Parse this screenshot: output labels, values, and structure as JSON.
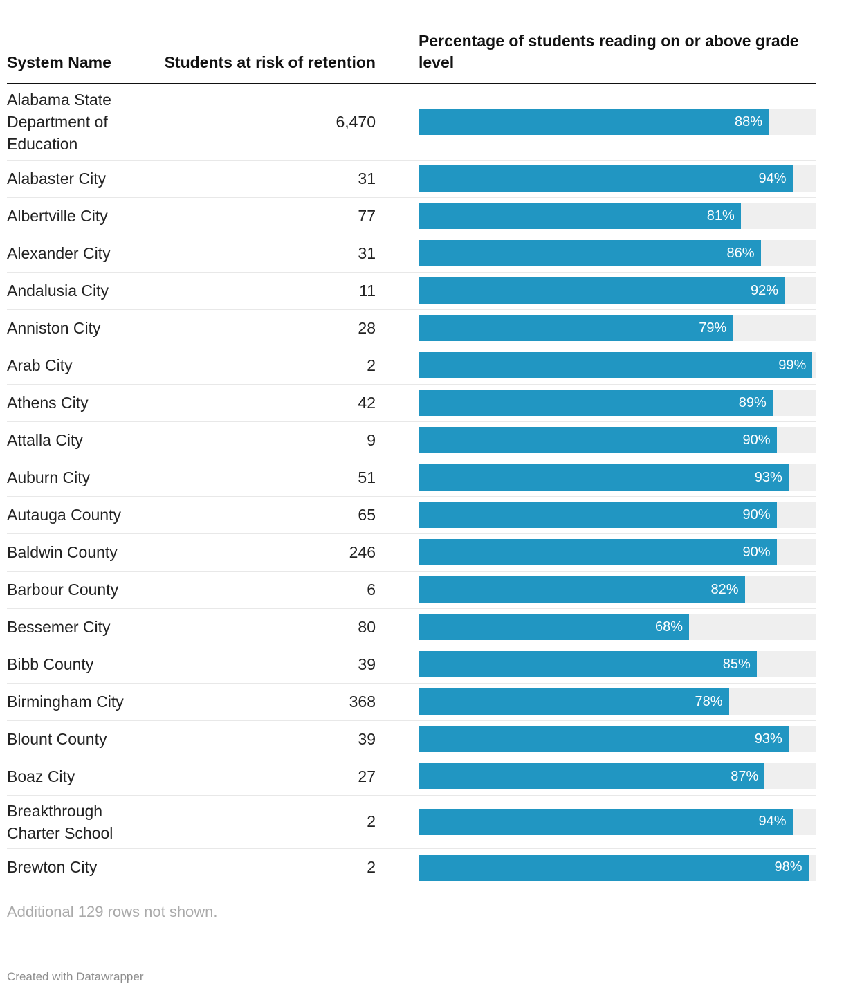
{
  "header": {
    "col1": "System Name",
    "col2": "Students at risk of retention",
    "col3": "Percentage of students reading on or above grade level"
  },
  "rows": [
    {
      "name": "Alabama State Department of Education",
      "at_risk": "6,470",
      "pct": 88
    },
    {
      "name": "Alabaster City",
      "at_risk": "31",
      "pct": 94
    },
    {
      "name": "Albertville City",
      "at_risk": "77",
      "pct": 81
    },
    {
      "name": "Alexander City",
      "at_risk": "31",
      "pct": 86
    },
    {
      "name": "Andalusia City",
      "at_risk": "11",
      "pct": 92
    },
    {
      "name": "Anniston City",
      "at_risk": "28",
      "pct": 79
    },
    {
      "name": "Arab City",
      "at_risk": "2",
      "pct": 99
    },
    {
      "name": "Athens City",
      "at_risk": "42",
      "pct": 89
    },
    {
      "name": "Attalla City",
      "at_risk": "9",
      "pct": 90
    },
    {
      "name": "Auburn City",
      "at_risk": "51",
      "pct": 93
    },
    {
      "name": "Autauga County",
      "at_risk": "65",
      "pct": 90
    },
    {
      "name": "Baldwin County",
      "at_risk": "246",
      "pct": 90
    },
    {
      "name": "Barbour County",
      "at_risk": "6",
      "pct": 82
    },
    {
      "name": "Bessemer City",
      "at_risk": "80",
      "pct": 68
    },
    {
      "name": "Bibb County",
      "at_risk": "39",
      "pct": 85
    },
    {
      "name": "Birmingham City",
      "at_risk": "368",
      "pct": 78
    },
    {
      "name": "Blount County",
      "at_risk": "39",
      "pct": 93
    },
    {
      "name": "Boaz City",
      "at_risk": "27",
      "pct": 87
    },
    {
      "name": "Breakthrough Charter School",
      "at_risk": "2",
      "pct": 94
    },
    {
      "name": "Brewton City",
      "at_risk": "2",
      "pct": 98
    }
  ],
  "footer": {
    "note": "Additional 129 rows not shown.",
    "credit": "Created with Datawrapper"
  },
  "colors": {
    "bar": "#2196c2",
    "track": "#efefef",
    "header_rule": "#111111",
    "row_rule": "#e8e8e8"
  },
  "chart_data": {
    "type": "bar",
    "orientation": "horizontal",
    "title": "",
    "xlabel": "Percentage of students reading on or above grade level",
    "ylabel": "System Name",
    "xlim": [
      0,
      100
    ],
    "grid": false,
    "legend_position": "none",
    "categories": [
      "Alabama State Department of Education",
      "Alabaster City",
      "Albertville City",
      "Alexander City",
      "Andalusia City",
      "Anniston City",
      "Arab City",
      "Athens City",
      "Attalla City",
      "Auburn City",
      "Autauga County",
      "Baldwin County",
      "Barbour County",
      "Bessemer City",
      "Bibb County",
      "Birmingham City",
      "Blount County",
      "Boaz City",
      "Breakthrough Charter School",
      "Brewton City"
    ],
    "series": [
      {
        "name": "Students at risk of retention",
        "values": [
          6470,
          31,
          77,
          31,
          11,
          28,
          2,
          42,
          9,
          51,
          65,
          246,
          6,
          80,
          39,
          368,
          39,
          27,
          2,
          2
        ]
      },
      {
        "name": "Percentage of students reading on or above grade level",
        "values": [
          88,
          94,
          81,
          86,
          92,
          79,
          99,
          89,
          90,
          93,
          90,
          90,
          82,
          68,
          85,
          78,
          93,
          87,
          94,
          98
        ]
      }
    ],
    "annotations": [
      "Additional 129 rows not shown."
    ]
  }
}
